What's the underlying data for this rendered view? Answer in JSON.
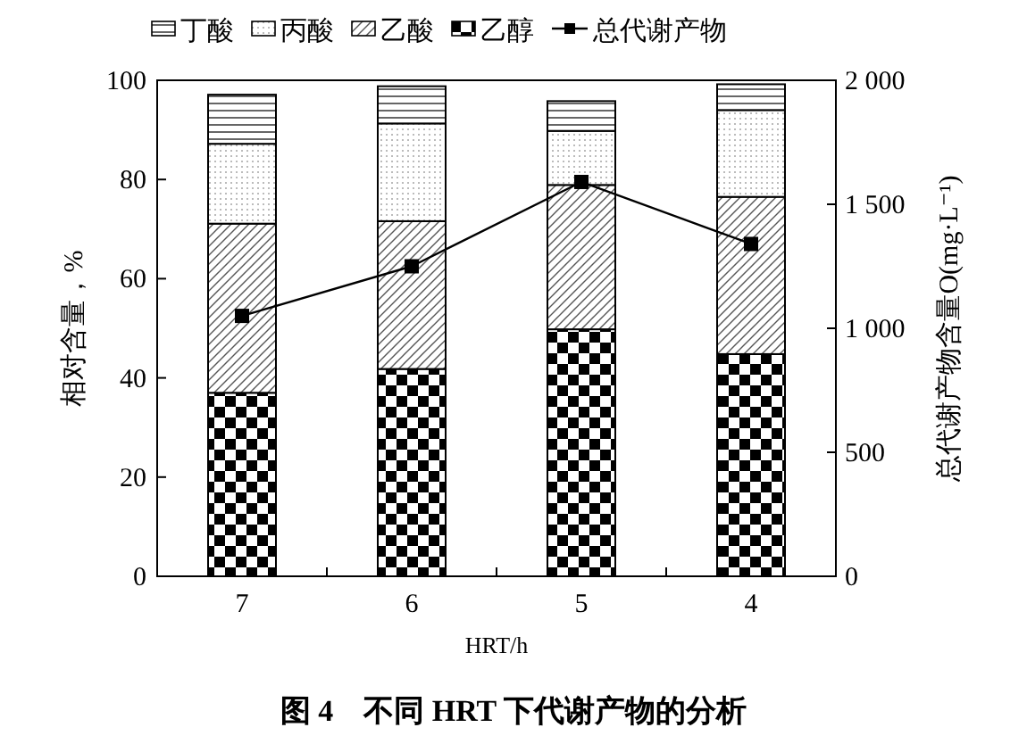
{
  "chart_data": {
    "type": "bar",
    "title": "图 4　不同 HRT 下代谢产物的分析",
    "xlabel": "HRT/h",
    "ylabel": "相对含量，%",
    "y2label": "总代谢产物含量O(mg·L⁻¹)",
    "categories": [
      "7",
      "6",
      "5",
      "4"
    ],
    "stacked": true,
    "series": [
      {
        "name": "乙醇",
        "values": [
          37.0,
          41.8,
          49.8,
          44.8
        ]
      },
      {
        "name": "乙酸",
        "values": [
          34.1,
          29.8,
          29.1,
          31.7
        ]
      },
      {
        "name": "丙酸",
        "values": [
          16.1,
          19.7,
          10.9,
          17.5
        ]
      },
      {
        "name": "丁酸",
        "values": [
          9.9,
          7.5,
          6.0,
          5.2
        ]
      },
      {
        "name": "总代谢产物",
        "type": "line",
        "axis": "y2",
        "color": "#000000",
        "values": [
          1050,
          1250,
          1590,
          1340
        ]
      }
    ],
    "ylim": [
      0,
      100
    ],
    "yticks": [
      0,
      20,
      40,
      60,
      80,
      100
    ],
    "y2lim": [
      0,
      2000
    ],
    "y2ticks": [
      0,
      500,
      {
        "value": 1000,
        "label": "1 000"
      },
      {
        "value": 1500,
        "label": "1 500"
      },
      {
        "value": 2000,
        "label": "2 000"
      }
    ],
    "grid": false,
    "legend": "top",
    "marker": "square",
    "line_style": "solid"
  }
}
